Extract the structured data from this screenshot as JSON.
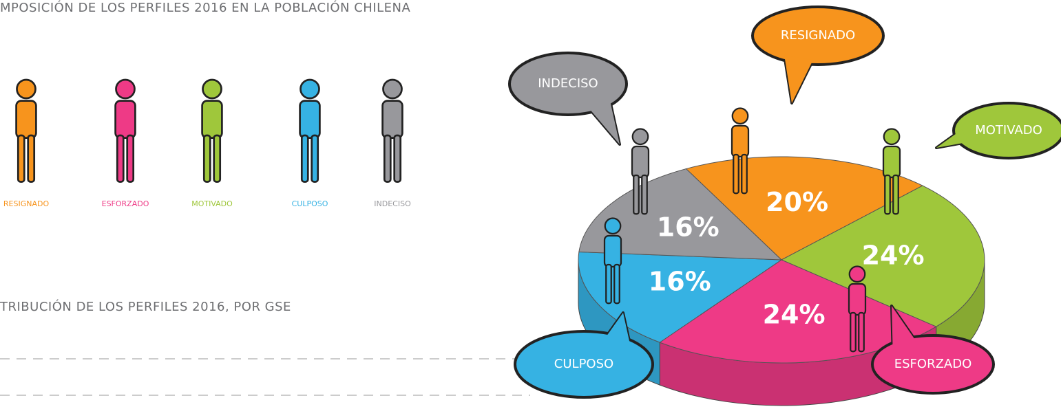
{
  "sections": [
    {
      "title": "MPOSICIÓN DE LOS PERFILES 2016 EN LA POBLACIÓN CHILENA"
    },
    {
      "title": "TRIBUCIÓN DE LOS PERFILES 2016, POR GSE"
    }
  ],
  "chart_data": {
    "type": "pie",
    "categories": [
      "RESIGNADO",
      "MOTIVADO",
      "ESFORZADO",
      "CULPOSO",
      "INDECISO"
    ],
    "values": [
      20,
      24,
      24,
      16,
      16
    ],
    "value_labels": [
      "20%",
      "24%",
      "24%",
      "16%",
      "16%"
    ],
    "colors": [
      "#f7941d",
      "#9fc73b",
      "#ee3a86",
      "#36b2e3",
      "#98989c"
    ]
  }
}
